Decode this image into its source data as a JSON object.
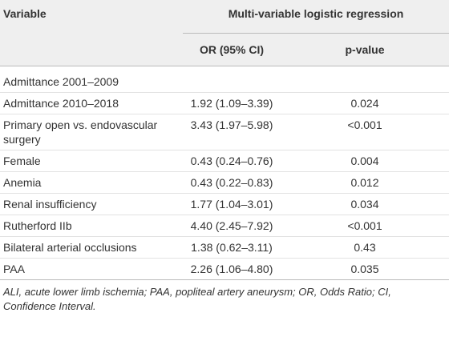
{
  "table": {
    "header": {
      "variable": "Variable",
      "group": "Multi-variable logistic regression",
      "or": "OR (95% CI)",
      "p": "p-value"
    },
    "rows": [
      {
        "variable": "Admittance 2001–2009"
      },
      {
        "variable": "Admittance 2010–2018",
        "or": "1.92 (1.09–3.39)",
        "p": "0.024"
      },
      {
        "variable": "Primary open vs. endovascular surgery",
        "or": "3.43 (1.97–5.98)",
        "p": "<0.001"
      },
      {
        "variable": "Female",
        "or": "0.43 (0.24–0.76)",
        "p": "0.004"
      },
      {
        "variable": "Anemia",
        "or": "0.43 (0.22–0.83)",
        "p": "0.012"
      },
      {
        "variable": "Renal insufficiency",
        "or": "1.77 (1.04–3.01)",
        "p": "0.034"
      },
      {
        "variable": "Rutherford IIb",
        "or": "4.40 (2.45–7.92)",
        "p": "<0.001"
      },
      {
        "variable": "Bilateral arterial occlusions",
        "or": "1.38 (0.62–3.11)",
        "p": "0.43"
      },
      {
        "variable": "PAA",
        "or": "2.26 (1.06–4.80)",
        "p": "0.035"
      }
    ],
    "footnote": "ALI, acute lower limb ischemia; PAA, popliteal artery aneurysm; OR, Odds Ratio; CI, Confidence Interval."
  }
}
